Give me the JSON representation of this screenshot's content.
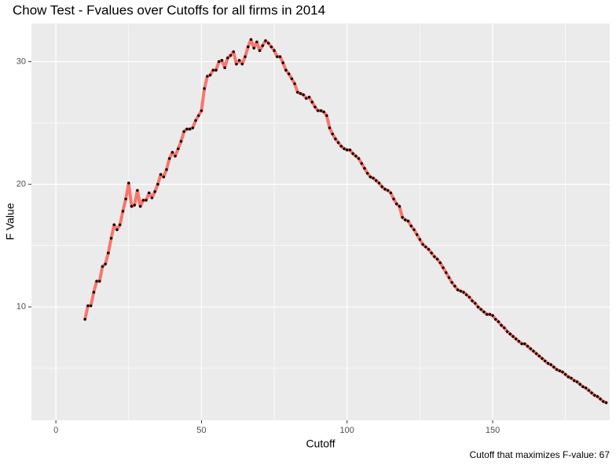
{
  "chart_data": {
    "type": "line",
    "title": "Chow Test - Fvalues over Cutoffs for all firms in 2014",
    "x_label": "Cutoff",
    "y_label": "F Value",
    "caption": "Cutoff that maximizes F-value: 67",
    "x": [
      10,
      11,
      12,
      13,
      14,
      15,
      16,
      17,
      18,
      19,
      20,
      21,
      22,
      23,
      24,
      25,
      26,
      27,
      28,
      29,
      30,
      31,
      32,
      33,
      34,
      35,
      36,
      37,
      38,
      39,
      40,
      41,
      42,
      43,
      44,
      45,
      46,
      47,
      48,
      49,
      50,
      51,
      52,
      53,
      54,
      55,
      56,
      57,
      58,
      59,
      60,
      61,
      62,
      63,
      64,
      65,
      66,
      67,
      68,
      69,
      70,
      71,
      72,
      73,
      74,
      75,
      76,
      77,
      78,
      79,
      80,
      81,
      82,
      83,
      84,
      85,
      86,
      87,
      88,
      89,
      90,
      91,
      92,
      93,
      94,
      95,
      96,
      97,
      98,
      99,
      100,
      101,
      102,
      103,
      104,
      105,
      106,
      107,
      108,
      109,
      110,
      111,
      112,
      113,
      114,
      115,
      116,
      117,
      118,
      119,
      120,
      121,
      122,
      123,
      124,
      125,
      126,
      127,
      128,
      129,
      130,
      131,
      132,
      133,
      134,
      135,
      136,
      137,
      138,
      139,
      140,
      141,
      142,
      143,
      144,
      145,
      146,
      147,
      148,
      149,
      150,
      151,
      152,
      153,
      154,
      155,
      156,
      157,
      158,
      159,
      160,
      161,
      162,
      163,
      164,
      165,
      166,
      167,
      168,
      169,
      170,
      171,
      172,
      173,
      174,
      175,
      176,
      177,
      178,
      179,
      180,
      181,
      182,
      183,
      184,
      185,
      186,
      187,
      188,
      189
    ],
    "series": [
      {
        "color": "#f8766d",
        "values": [
          9.0,
          10.1,
          10.1,
          11.2,
          12.1,
          12.1,
          13.3,
          13.5,
          14.4,
          15.6,
          16.7,
          16.3,
          16.7,
          17.8,
          18.8,
          20.1,
          18.2,
          18.3,
          19.5,
          18.2,
          18.7,
          18.7,
          19.3,
          18.9,
          19.4,
          20.0,
          20.8,
          20.6,
          21.2,
          22.1,
          22.6,
          22.3,
          22.9,
          23.5,
          24.3,
          24.5,
          24.5,
          24.6,
          25.2,
          25.6,
          26.0,
          27.8,
          28.8,
          28.9,
          29.3,
          29.3,
          30.0,
          30.1,
          29.5,
          30.3,
          30.5,
          30.8,
          29.8,
          30.1,
          29.8,
          30.4,
          31.2,
          31.8,
          31.1,
          31.6,
          30.9,
          31.3,
          31.7,
          31.5,
          31.2,
          30.9,
          30.4,
          30.4,
          29.9,
          29.3,
          29.0,
          28.6,
          28.2,
          27.5,
          27.4,
          27.3,
          27.0,
          27.1,
          26.7,
          26.3,
          26.0,
          26.0,
          25.9,
          25.6,
          24.6,
          24.1,
          23.7,
          23.4,
          23.1,
          22.9,
          22.8,
          22.8,
          22.5,
          22.3,
          22.1,
          21.7,
          21.3,
          20.9,
          20.6,
          20.5,
          20.3,
          20.1,
          19.8,
          19.6,
          19.5,
          19.3,
          18.8,
          18.4,
          18.2,
          17.3,
          17.1,
          17.0,
          16.6,
          16.3,
          15.9,
          15.5,
          15.1,
          14.9,
          14.7,
          14.4,
          14.1,
          13.9,
          13.6,
          13.2,
          12.8,
          12.4,
          12.0,
          11.7,
          11.4,
          11.3,
          11.2,
          11.0,
          10.8,
          10.5,
          10.3,
          10.0,
          9.8,
          9.6,
          9.4,
          9.4,
          9.3,
          9.0,
          8.8,
          8.5,
          8.3,
          8.0,
          7.8,
          7.6,
          7.4,
          7.2,
          7.0,
          7.0,
          6.8,
          6.6,
          6.4,
          6.2,
          6.0,
          5.8,
          5.6,
          5.4,
          5.3,
          5.1,
          4.9,
          4.8,
          4.7,
          4.5,
          4.3,
          4.2,
          4.0,
          3.9,
          3.7,
          3.5,
          3.4,
          3.2,
          3.0,
          2.8,
          2.7,
          2.5,
          2.3,
          2.2
        ]
      }
    ],
    "point_color": "#000000",
    "xlim": [
      -8.4,
      190.2
    ],
    "ylim": [
      0.77,
      33.1
    ],
    "xticks": [
      0,
      50,
      100,
      150
    ],
    "yticks": [
      10,
      20,
      30
    ],
    "x_minor_ticks": [
      25,
      75,
      125,
      175
    ],
    "y_minor_ticks": [
      5,
      15,
      25
    ],
    "grid": true
  }
}
